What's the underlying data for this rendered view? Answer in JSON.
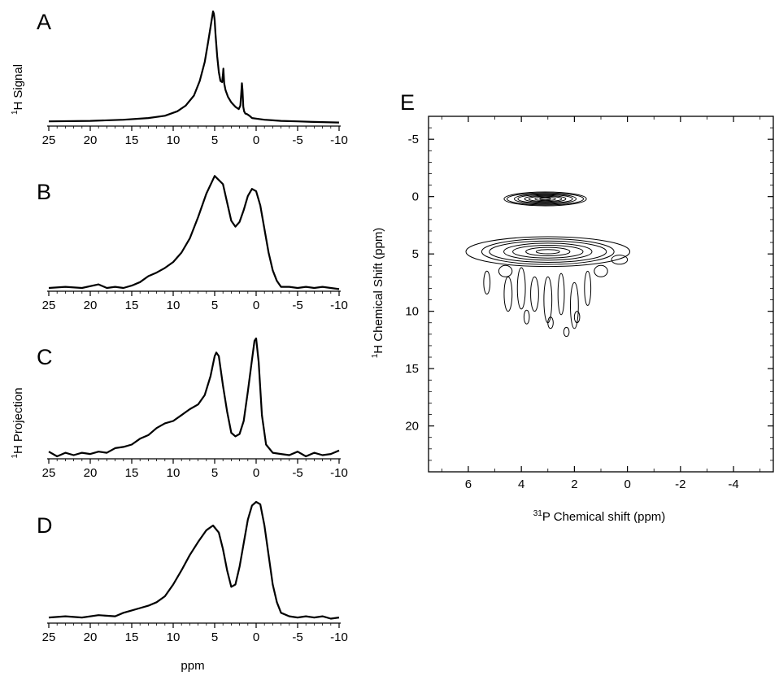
{
  "figure": {
    "side_labels": {
      "signal": "Signal",
      "projection": "Projection",
      "nucleus_mass": "1",
      "nucleus_symbol": "H"
    }
  },
  "chart_data": [
    {
      "type": "line",
      "panel": "A",
      "xlim": [
        25,
        -10
      ],
      "xticks": [
        "25",
        "20",
        "15",
        "10",
        "5",
        "0",
        "-5",
        "-10"
      ],
      "xlabel": "",
      "ylabel": "1H Signal",
      "series": [
        {
          "x": [
            25,
            20,
            16,
            13,
            11,
            9.5,
            8.5,
            7.5,
            6.8,
            6.2,
            5.8,
            5.5,
            5.3,
            5.2,
            5.1,
            5.0,
            4.9,
            4.7,
            4.5,
            4.3,
            4.1,
            4.0,
            3.95,
            3.85,
            3.7,
            3.4,
            3.0,
            2.5,
            2.1,
            1.9,
            1.8,
            1.72,
            1.65,
            1.55,
            1.45,
            1.3,
            1.1,
            0.8,
            0.5,
            0,
            -1,
            -2,
            -3,
            -5,
            -7,
            -10
          ],
          "y": [
            0.02,
            0.025,
            0.035,
            0.05,
            0.07,
            0.11,
            0.16,
            0.25,
            0.38,
            0.55,
            0.72,
            0.86,
            0.95,
            1.0,
            0.98,
            0.92,
            0.8,
            0.6,
            0.46,
            0.38,
            0.37,
            0.44,
            0.49,
            0.36,
            0.3,
            0.24,
            0.19,
            0.15,
            0.13,
            0.16,
            0.26,
            0.36,
            0.3,
            0.15,
            0.11,
            0.09,
            0.085,
            0.07,
            0.05,
            0.045,
            0.035,
            0.03,
            0.025,
            0.02,
            0.015,
            0.01
          ]
        }
      ]
    },
    {
      "type": "line",
      "panel": "B",
      "xlim": [
        25,
        -10
      ],
      "xticks": [
        "25",
        "20",
        "15",
        "10",
        "5",
        "0",
        "-5",
        "-10"
      ],
      "xlabel": "",
      "ylabel": "",
      "series": [
        {
          "x": [
            25,
            23,
            21,
            19,
            18,
            17,
            16,
            15,
            14,
            13,
            12,
            11,
            10,
            9,
            8,
            7,
            6,
            5,
            4,
            3,
            2.5,
            2,
            1.5,
            1,
            0.5,
            0,
            -0.5,
            -1,
            -1.5,
            -2,
            -2.5,
            -3,
            -4,
            -5,
            -6,
            -7,
            -8,
            -9,
            -10
          ],
          "y": [
            0.0,
            0.01,
            0.0,
            0.03,
            0.0,
            0.01,
            0.0,
            0.02,
            0.05,
            0.1,
            0.13,
            0.17,
            0.22,
            0.3,
            0.42,
            0.6,
            0.8,
            0.95,
            0.88,
            0.57,
            0.52,
            0.56,
            0.66,
            0.78,
            0.84,
            0.82,
            0.7,
            0.5,
            0.3,
            0.15,
            0.06,
            0.01,
            0.01,
            0.0,
            0.01,
            0.0,
            0.01,
            0.0,
            -0.01
          ]
        }
      ]
    },
    {
      "type": "line",
      "panel": "C",
      "xlim": [
        25,
        -10
      ],
      "xticks": [
        "25",
        "20",
        "15",
        "10",
        "5",
        "0",
        "-5",
        "-10"
      ],
      "xlabel": "",
      "ylabel": "",
      "series": [
        {
          "x": [
            25,
            24,
            23,
            22,
            21,
            20,
            19,
            18,
            17,
            16,
            15,
            14,
            13,
            12,
            11,
            10,
            9,
            8,
            7,
            6.2,
            5.5,
            5.0,
            4.8,
            4.5,
            4.0,
            3.5,
            3.0,
            2.5,
            2.0,
            1.5,
            1.0,
            0.5,
            0.2,
            0.0,
            -0.3,
            -0.7,
            -1.2,
            -2,
            -3,
            -4,
            -5,
            -6,
            -7,
            -8,
            -9,
            -10
          ],
          "y": [
            0.04,
            0.0,
            0.03,
            0.01,
            0.03,
            0.02,
            0.04,
            0.03,
            0.07,
            0.08,
            0.1,
            0.15,
            0.18,
            0.24,
            0.28,
            0.3,
            0.35,
            0.4,
            0.44,
            0.52,
            0.68,
            0.85,
            0.88,
            0.85,
            0.6,
            0.38,
            0.2,
            0.17,
            0.19,
            0.3,
            0.55,
            0.82,
            0.98,
            1.0,
            0.8,
            0.35,
            0.1,
            0.03,
            0.02,
            0.01,
            0.04,
            0.0,
            0.03,
            0.01,
            0.02,
            0.05
          ]
        }
      ]
    },
    {
      "type": "line",
      "panel": "D",
      "xlim": [
        25,
        -10
      ],
      "xticks": [
        "25",
        "20",
        "15",
        "10",
        "5",
        "0",
        "-5",
        "-10"
      ],
      "xlabel": "ppm",
      "ylabel": "",
      "series": [
        {
          "x": [
            25,
            23,
            21,
            19,
            17,
            16,
            15,
            14,
            13,
            12,
            11,
            10,
            9,
            8,
            7,
            6,
            5.2,
            4.5,
            4,
            3.5,
            3,
            2.5,
            2,
            1.5,
            1,
            0.5,
            0,
            -0.5,
            -1,
            -1.5,
            -2,
            -2.5,
            -3,
            -4,
            -5,
            -6,
            -7,
            -8,
            -9,
            -10
          ],
          "y": [
            0.02,
            0.03,
            0.02,
            0.04,
            0.03,
            0.06,
            0.08,
            0.1,
            0.12,
            0.15,
            0.2,
            0.3,
            0.42,
            0.55,
            0.66,
            0.76,
            0.8,
            0.74,
            0.6,
            0.42,
            0.28,
            0.3,
            0.45,
            0.65,
            0.85,
            0.97,
            1.0,
            0.98,
            0.8,
            0.55,
            0.3,
            0.15,
            0.06,
            0.03,
            0.02,
            0.03,
            0.02,
            0.03,
            0.01,
            0.02
          ]
        }
      ]
    },
    {
      "type": "contour",
      "panel": "E",
      "xlim": [
        7.5,
        -5.5
      ],
      "ylim": [
        -7,
        24
      ],
      "xticks": [
        "6",
        "4",
        "2",
        "0",
        "-2",
        "-4"
      ],
      "yticks": [
        "-5",
        "0",
        "5",
        "10",
        "15",
        "20"
      ],
      "xlabel_mass": "31",
      "xlabel_rest": "P Chemical shift (ppm)",
      "ylabel_mass": "1",
      "ylabel_rest": "H Chemical Shift (ppm)",
      "peaks": [
        {
          "x": 3.1,
          "y": 0.2,
          "rx": 1.6,
          "ry": 0.6,
          "levels": 8
        },
        {
          "x": 3.0,
          "y": 4.8,
          "rx": 3.0,
          "ry": 1.3,
          "levels": 7
        }
      ],
      "minor_contours": [
        {
          "x": 4.5,
          "y": 8.5,
          "rx": 0.15,
          "ry": 1.5
        },
        {
          "x": 4.0,
          "y": 8.0,
          "rx": 0.15,
          "ry": 1.8
        },
        {
          "x": 3.5,
          "y": 8.5,
          "rx": 0.15,
          "ry": 1.5
        },
        {
          "x": 3.0,
          "y": 9.0,
          "rx": 0.15,
          "ry": 2.0
        },
        {
          "x": 2.5,
          "y": 8.5,
          "rx": 0.12,
          "ry": 1.8
        },
        {
          "x": 2.0,
          "y": 9.5,
          "rx": 0.15,
          "ry": 2.0
        },
        {
          "x": 1.5,
          "y": 8.0,
          "rx": 0.12,
          "ry": 1.5
        },
        {
          "x": 5.3,
          "y": 7.5,
          "rx": 0.12,
          "ry": 1.0
        },
        {
          "x": 3.8,
          "y": 10.5,
          "rx": 0.1,
          "ry": 0.6
        },
        {
          "x": 2.9,
          "y": 11.0,
          "rx": 0.1,
          "ry": 0.5
        },
        {
          "x": 2.3,
          "y": 11.8,
          "rx": 0.1,
          "ry": 0.4
        },
        {
          "x": 1.9,
          "y": 10.5,
          "rx": 0.1,
          "ry": 0.5
        },
        {
          "x": 4.6,
          "y": 6.5,
          "rx": 0.25,
          "ry": 0.5
        },
        {
          "x": 1.0,
          "y": 6.5,
          "rx": 0.25,
          "ry": 0.5
        },
        {
          "x": 0.3,
          "y": 5.5,
          "rx": 0.3,
          "ry": 0.4
        }
      ]
    }
  ]
}
